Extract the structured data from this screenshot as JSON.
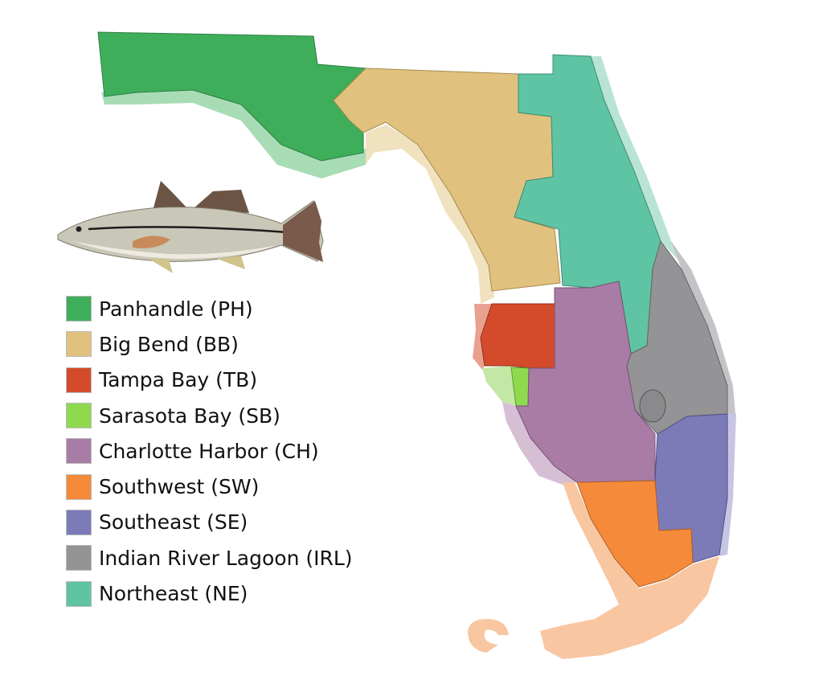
{
  "legend": [
    {
      "code": "PH",
      "label": "Panhandle (PH)",
      "color": "#3fae5b"
    },
    {
      "code": "BB",
      "label": "Big Bend (BB)",
      "color": "#e0c27e"
    },
    {
      "code": "TB",
      "label": "Tampa Bay (TB)",
      "color": "#d44b2c"
    },
    {
      "code": "SB",
      "label": "Sarasota Bay (SB)",
      "color": "#8fd94f"
    },
    {
      "code": "CH",
      "label": "Charlotte Harbor (CH)",
      "color": "#a97ca6"
    },
    {
      "code": "SW",
      "label": "Southwest (SW)",
      "color": "#f58a3b"
    },
    {
      "code": "SE",
      "label": "Southeast (SE)",
      "color": "#7c7bb8"
    },
    {
      "code": "IRL",
      "label": "Indian River Lagoon (IRL)",
      "color": "#949395"
    },
    {
      "code": "NE",
      "label": "Northeast (NE)",
      "color": "#5fc4a3"
    }
  ],
  "illustration": "snook-fish"
}
